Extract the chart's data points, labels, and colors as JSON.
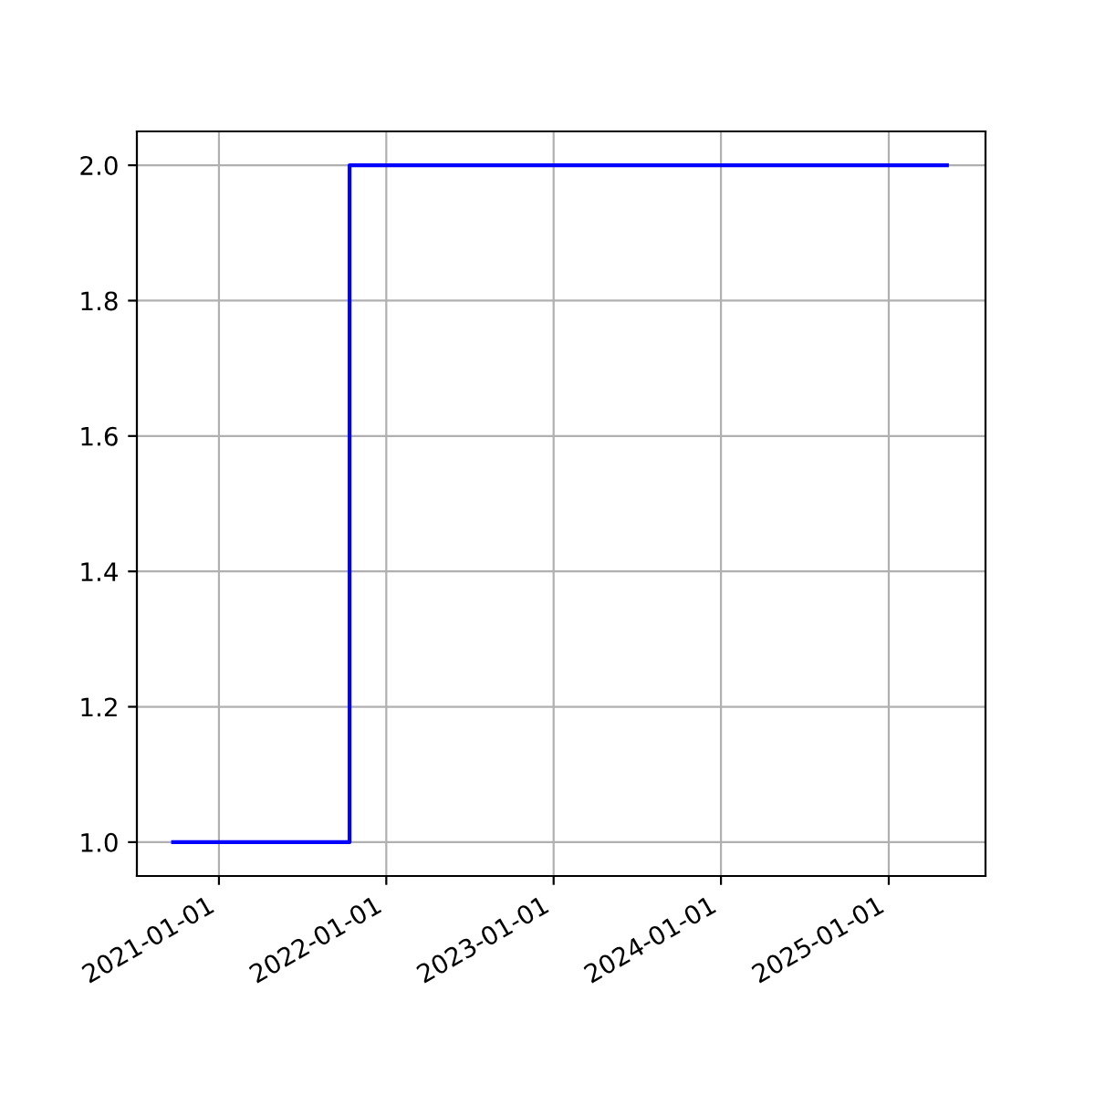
{
  "chart_data": {
    "type": "step",
    "x": [
      "2020-09-23",
      "2021-10-13",
      "2025-05-08"
    ],
    "series": [
      {
        "color": "#0000ff",
        "values": [
          1,
          2,
          2
        ]
      }
    ],
    "xlim": [
      "2020-07-06",
      "2025-07-31"
    ],
    "xticks": [
      "2021-01-01",
      "2022-01-01",
      "2023-01-01",
      "2024-01-01",
      "2025-01-01"
    ],
    "ylim": [
      0.95,
      2.05
    ],
    "yticks": [
      {
        "value": 1,
        "label": "1.0"
      },
      1.2,
      1.4,
      1.6,
      1.8,
      {
        "value": 2,
        "label": "2.0"
      }
    ],
    "grid": true
  }
}
